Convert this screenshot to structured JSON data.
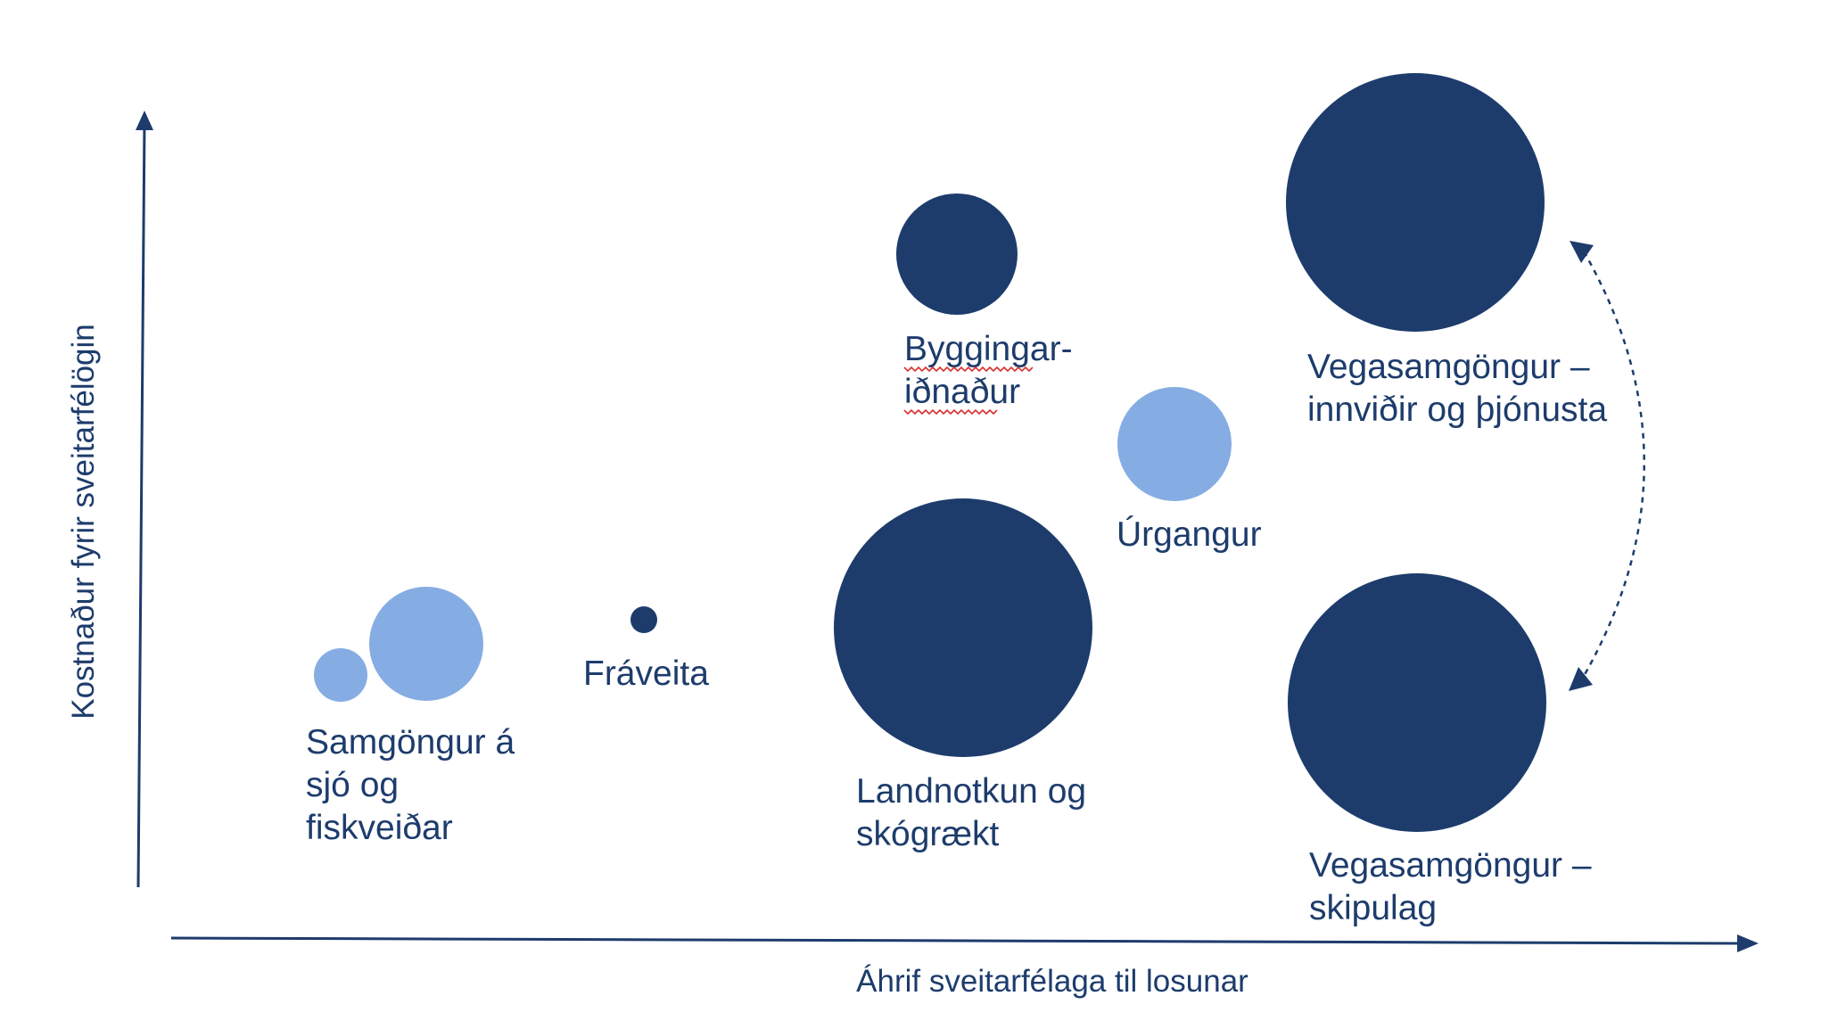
{
  "axes": {
    "x_label": "Áhrif sveitarfélaga til losunar",
    "y_label": "Kostnaður fyrir sveitarfélögin"
  },
  "colors": {
    "dark": "#1d3c6c",
    "light": "#86ade3",
    "axis": "#1d3c6c"
  },
  "bubbles": [
    {
      "id": "samgongur-sjo-small",
      "tone": "light",
      "label_lines": []
    },
    {
      "id": "samgongur-sjo",
      "tone": "light",
      "label_lines": [
        "Samgöngur á",
        "sjó og",
        "fiskveiðar"
      ]
    },
    {
      "id": "fraveita",
      "tone": "dark",
      "label_lines": [
        "Fráveita"
      ]
    },
    {
      "id": "byggingar",
      "tone": "dark",
      "label_lines": [
        "Byggingar-",
        "iðnaður"
      ],
      "spellcheck": true
    },
    {
      "id": "landnotkun",
      "tone": "dark",
      "label_lines": [
        "Landnotkun og",
        "skógrækt"
      ]
    },
    {
      "id": "urgangur",
      "tone": "light",
      "label_lines": [
        "Úrgangur"
      ]
    },
    {
      "id": "veg-innvidir",
      "tone": "dark",
      "label_lines": [
        "Vegasamgöngur –",
        "innviðir og þjónusta"
      ]
    },
    {
      "id": "veg-skipulag",
      "tone": "dark",
      "label_lines": [
        "Vegasamgöngur –",
        "skipulag"
      ]
    }
  ],
  "connector": {
    "from": "veg-innvidir",
    "to": "veg-skipulag",
    "style": "dashed",
    "arrows": "both"
  }
}
